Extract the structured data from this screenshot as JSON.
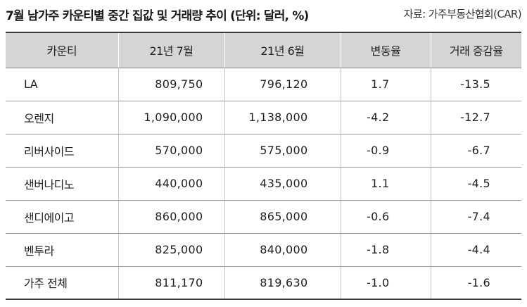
{
  "title": "7월 남가주 카운티별 중간 집값 및 거래량 추이 (단위: 달러, %)",
  "source": "자료: 가주부동산협회(CAR)",
  "table": {
    "headers": [
      "카운티",
      "21년 7월",
      "21년 6월",
      "변동율",
      "거래 증감율"
    ],
    "rows": [
      {
        "county": "LA",
        "jul": "809,750",
        "jun": "796,120",
        "change": "1.7",
        "volume": "-13.5"
      },
      {
        "county": "오렌지",
        "jul": "1,090,000",
        "jun": "1,138,000",
        "change": "-4.2",
        "volume": "-12.7"
      },
      {
        "county": "리버사이드",
        "jul": "570,000",
        "jun": "575,000",
        "change": "-0.9",
        "volume": "-6.7"
      },
      {
        "county": "샌버나디노",
        "jul": "440,000",
        "jun": "435,000",
        "change": "1.1",
        "volume": "-4.5"
      },
      {
        "county": "샌디에이고",
        "jul": "860,000",
        "jun": "865,000",
        "change": "-0.6",
        "volume": "-7.4"
      },
      {
        "county": "벤투라",
        "jul": "825,000",
        "jun": "840,000",
        "change": "-1.8",
        "volume": "-4.4"
      },
      {
        "county": "가주 전체",
        "jul": "811,170",
        "jun": "819,630",
        "change": "-1.0",
        "volume": "-1.6"
      }
    ]
  }
}
